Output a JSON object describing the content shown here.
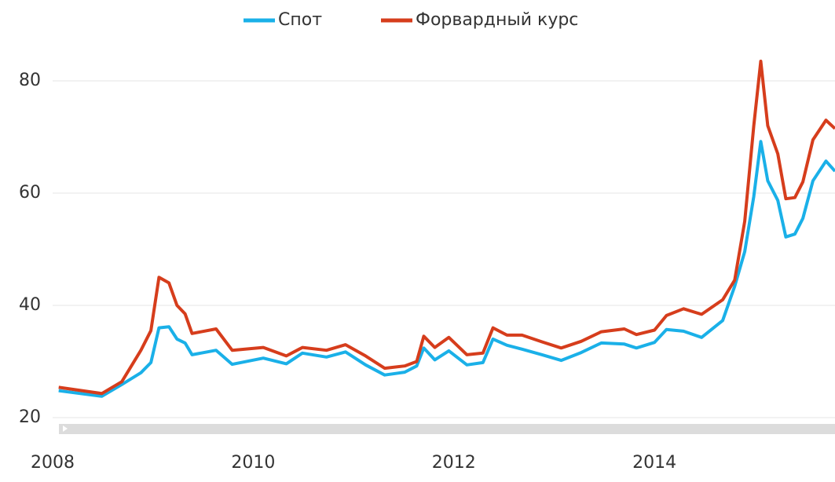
{
  "chart_data": {
    "type": "line",
    "x": [
      2008.06,
      2008.49,
      2008.69,
      2008.88,
      2008.98,
      2009.06,
      2009.16,
      2009.24,
      2009.32,
      2009.39,
      2009.63,
      2009.79,
      2010.1,
      2010.33,
      2010.49,
      2010.73,
      2010.92,
      2011.12,
      2011.31,
      2011.51,
      2011.63,
      2011.7,
      2011.81,
      2011.95,
      2012.13,
      2012.29,
      2012.39,
      2012.53,
      2012.68,
      2012.88,
      2013.07,
      2013.27,
      2013.47,
      2013.7,
      2013.82,
      2014.0,
      2014.12,
      2014.29,
      2014.47,
      2014.68,
      2014.8,
      2014.9,
      2014.99,
      2015.06,
      2015.13,
      2015.23,
      2015.31,
      2015.4,
      2015.48,
      2015.58,
      2015.71,
      2015.8
    ],
    "series": [
      {
        "name": "Спот",
        "color": "#1ab0e8",
        "values": [
          24.8,
          23.8,
          25.9,
          28,
          29.8,
          36,
          36.2,
          34,
          33.3,
          31.2,
          32,
          29.5,
          30.6,
          29.6,
          31.5,
          30.8,
          31.7,
          29.4,
          27.6,
          28.1,
          29.2,
          32.4,
          30.3,
          31.9,
          29.4,
          29.8,
          34,
          32.9,
          32.2,
          31.2,
          30.2,
          31.6,
          33.3,
          33.1,
          32.4,
          33.4,
          35.7,
          35.4,
          34.3,
          37.3,
          43.4,
          49.6,
          59.4,
          69.2,
          62.2,
          58.7,
          52.2,
          52.7,
          55.5,
          62.2,
          65.7,
          63.9
        ]
      },
      {
        "name": "Форвардный курс",
        "color": "#d63d1c",
        "values": [
          25.4,
          24.3,
          26.4,
          32,
          35.5,
          45,
          44,
          40,
          38.5,
          35,
          35.8,
          32,
          32.5,
          31,
          32.5,
          32,
          33,
          31,
          28.8,
          29.2,
          30,
          34.5,
          32.5,
          34.3,
          31.2,
          31.5,
          36,
          34.7,
          34.7,
          33.5,
          32.4,
          33.6,
          35.3,
          35.8,
          34.8,
          35.6,
          38.2,
          39.4,
          38.4,
          41,
          44.5,
          55,
          72,
          83.5,
          72,
          67,
          59,
          59.2,
          62,
          69.5,
          73,
          71.5
        ]
      }
    ],
    "xlim": [
      2008,
      2015.8
    ],
    "xticks": [
      2008,
      2010,
      2012,
      2014
    ],
    "ylim": [
      19,
      86
    ],
    "yticks": [
      20,
      40,
      60,
      80
    ],
    "grid": true,
    "legend": "top"
  }
}
